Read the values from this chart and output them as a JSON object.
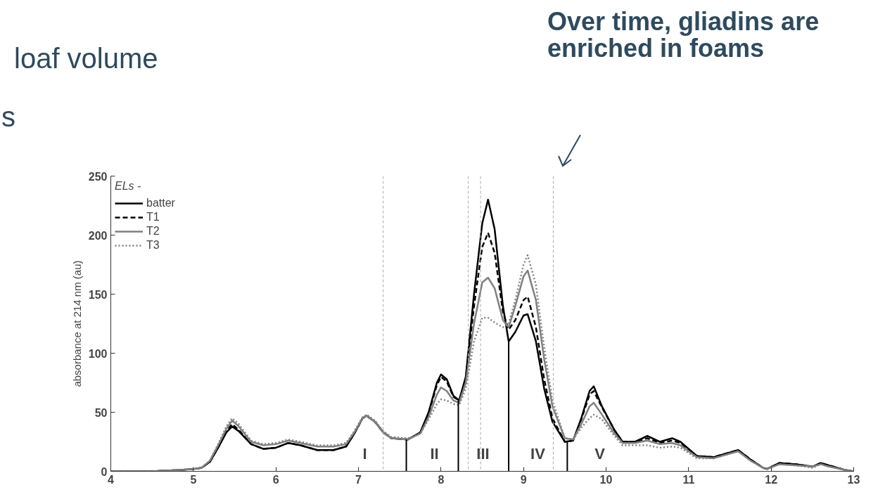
{
  "chart_data": {
    "type": "line",
    "ylabel": "absorbance at 214 nm (au)",
    "legend_title": "ELs -",
    "legend": "top left",
    "grid": false,
    "xlim": [
      4,
      13
    ],
    "xticks": [
      4,
      5,
      6,
      7,
      8,
      9,
      10,
      11,
      12,
      13
    ],
    "ylim": [
      0,
      250
    ],
    "yticks": [
      0,
      50,
      100,
      150,
      200,
      250
    ],
    "x": [
      4.0,
      4.5,
      4.8,
      5.0,
      5.1,
      5.2,
      5.3,
      5.4,
      5.47,
      5.55,
      5.7,
      5.85,
      6.0,
      6.15,
      6.3,
      6.5,
      6.7,
      6.85,
      6.95,
      7.05,
      7.1,
      7.2,
      7.3,
      7.4,
      7.6,
      7.75,
      7.85,
      7.95,
      8.0,
      8.07,
      8.15,
      8.22,
      8.3,
      8.4,
      8.5,
      8.57,
      8.65,
      8.75,
      8.82,
      8.9,
      9.0,
      9.05,
      9.15,
      9.25,
      9.35,
      9.5,
      9.6,
      9.7,
      9.8,
      9.85,
      9.95,
      10.1,
      10.2,
      10.35,
      10.5,
      10.65,
      10.8,
      10.9,
      11.1,
      11.3,
      11.5,
      11.6,
      11.75,
      11.9,
      11.95,
      12.1,
      12.3,
      12.5,
      12.6,
      12.7,
      12.9,
      13.0
    ],
    "series": [
      {
        "name": "batter",
        "color": "#000000",
        "line_style": "solid",
        "values": [
          0,
          0,
          1,
          2,
          3,
          8,
          20,
          33,
          38,
          34,
          23,
          19,
          20,
          24,
          22,
          18,
          18,
          21,
          32,
          45,
          47,
          42,
          33,
          28,
          27,
          33,
          50,
          75,
          82,
          78,
          64,
          60,
          80,
          150,
          210,
          230,
          205,
          140,
          110,
          118,
          132,
          133,
          110,
          70,
          42,
          25,
          26,
          45,
          68,
          72,
          55,
          35,
          25,
          25,
          30,
          25,
          28,
          25,
          13,
          12,
          16,
          18,
          10,
          3,
          2,
          7,
          6,
          4,
          7,
          5,
          1,
          0
        ]
      },
      {
        "name": "T1",
        "color": "#000000",
        "line_style": "dashed",
        "values": [
          0,
          0,
          1,
          2,
          3,
          8,
          20,
          34,
          40,
          35,
          23,
          19,
          20,
          24,
          22,
          18,
          18,
          21,
          32,
          45,
          47,
          42,
          33,
          28,
          27,
          33,
          49,
          73,
          80,
          76,
          63,
          60,
          78,
          140,
          190,
          202,
          185,
          135,
          120,
          128,
          145,
          148,
          122,
          78,
          45,
          25,
          26,
          44,
          65,
          68,
          54,
          35,
          25,
          25,
          28,
          24,
          26,
          24,
          13,
          12,
          16,
          18,
          10,
          3,
          2,
          7,
          6,
          4,
          7,
          5,
          1,
          0
        ]
      },
      {
        "name": "T2",
        "color": "#808080",
        "line_style": "solid",
        "values": [
          0,
          0,
          1,
          2,
          3,
          9,
          22,
          36,
          43,
          38,
          25,
          22,
          23,
          26,
          24,
          21,
          21,
          23,
          33,
          45,
          47,
          42,
          33,
          28,
          27,
          32,
          46,
          65,
          71,
          68,
          60,
          58,
          75,
          125,
          160,
          164,
          155,
          128,
          122,
          140,
          165,
          170,
          145,
          95,
          55,
          28,
          27,
          40,
          55,
          58,
          48,
          32,
          24,
          24,
          26,
          23,
          24,
          22,
          12,
          11,
          15,
          17,
          9,
          3,
          2,
          6,
          5,
          4,
          6,
          4,
          1,
          0
        ]
      },
      {
        "name": "T3",
        "color": "#808080",
        "line_style": "dotted",
        "values": [
          0,
          0,
          1,
          2,
          3,
          9,
          23,
          38,
          45,
          40,
          26,
          23,
          24,
          27,
          25,
          22,
          22,
          24,
          34,
          46,
          48,
          43,
          34,
          29,
          28,
          32,
          44,
          57,
          61,
          60,
          57,
          56,
          70,
          110,
          130,
          130,
          126,
          122,
          125,
          145,
          175,
          183,
          158,
          105,
          60,
          28,
          27,
          37,
          45,
          48,
          44,
          30,
          22,
          22,
          22,
          20,
          21,
          20,
          11,
          11,
          15,
          17,
          9,
          3,
          2,
          6,
          5,
          3,
          6,
          4,
          1,
          0
        ]
      },
      {
        "type": "line",
        "color": "#000000",
        "line_style": "solid",
        "x": [
          7.58,
          7.58
        ],
        "values": [
          0,
          27
        ]
      },
      {
        "type": "line",
        "color": "#000000",
        "line_style": "solid",
        "x": [
          8.21,
          8.21
        ],
        "values": [
          0,
          60
        ]
      },
      {
        "type": "line",
        "color": "#000000",
        "line_style": "solid",
        "x": [
          8.82,
          8.82
        ],
        "values": [
          0,
          110
        ]
      },
      {
        "type": "line",
        "color": "#000000",
        "line_style": "solid",
        "x": [
          9.53,
          9.53
        ],
        "values": [
          0,
          25
        ]
      }
    ],
    "ref_lines": [
      {
        "axis": "x",
        "value": 7.3,
        "color": "#aaaaaa",
        "line_style": "dashed"
      },
      {
        "axis": "x",
        "value": 8.33,
        "color": "#aaaaaa",
        "line_style": "dashed"
      },
      {
        "axis": "x",
        "value": 8.48,
        "color": "#aaaaaa",
        "line_style": "dashed"
      },
      {
        "axis": "x",
        "value": 9.36,
        "color": "#aaaaaa",
        "line_style": "dashed"
      }
    ],
    "annotations": [
      "loaf volume",
      "s",
      "Over time, gliadins are enriched in foams",
      "I",
      "II",
      "III",
      "IV",
      "V"
    ]
  }
}
